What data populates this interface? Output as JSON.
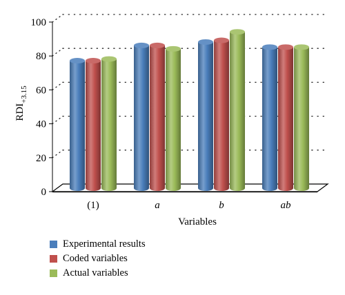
{
  "chart_data": {
    "type": "bar",
    "categories": [
      "(1)",
      "a",
      "b",
      "ab"
    ],
    "series": [
      {
        "name": "Experimental results",
        "values": [
          76,
          85,
          87,
          84
        ],
        "color": "#4a7ebb"
      },
      {
        "name": "Coded variables",
        "values": [
          76,
          85,
          88,
          84
        ],
        "color": "#c0504d"
      },
      {
        "name": "Actual variables",
        "values": [
          77,
          83,
          93,
          84
        ],
        "color": "#9bbb59"
      }
    ],
    "xlabel": "Variables",
    "ylabel": "RDI",
    "ylabel_subscript": "+3.15",
    "ylim": [
      0,
      100
    ],
    "yticks": [
      0,
      20,
      40,
      60,
      80,
      100
    ],
    "grid": true,
    "legend_position": "bottom-left"
  }
}
